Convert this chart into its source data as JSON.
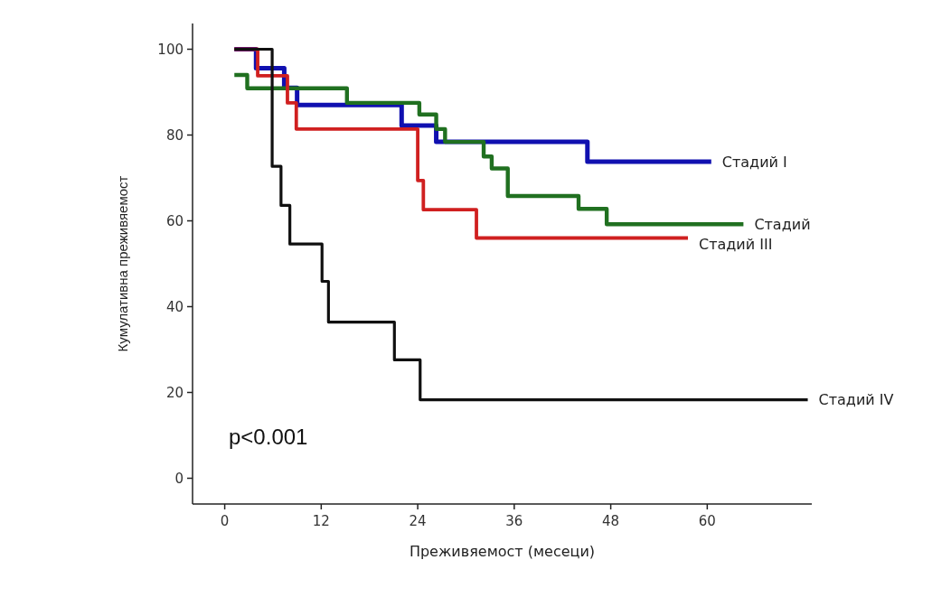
{
  "chart_data": {
    "type": "step",
    "xlabel": "Преживяемост (месеци)",
    "ylabel": "Кумулативна преживяемост",
    "xlim": [
      -4,
      73
    ],
    "ylim": [
      -6,
      106
    ],
    "xticks": [
      0,
      12,
      24,
      36,
      48,
      60
    ],
    "yticks": [
      0,
      20,
      40,
      60,
      80,
      100
    ],
    "grid": false,
    "marker": "none",
    "line_style": "solid",
    "annotations": [
      "p<0.001"
    ],
    "series": [
      {
        "name": "Стадий I",
        "color": "#1010b0",
        "x": [
          1.2,
          3.9,
          7.4,
          9,
          22,
          26.3,
          45.1,
          60.5
        ],
        "values": [
          100,
          95.6,
          91,
          87,
          82.2,
          78.4,
          73.8,
          73.8
        ]
      },
      {
        "name": "Стадий",
        "color": "#207020",
        "x": [
          1.2,
          2.8,
          15.2,
          24.2,
          26.3,
          27.4,
          32.2,
          33.2,
          35.2,
          44,
          47.5,
          64.5
        ],
        "values": [
          94,
          90.9,
          87.5,
          84.8,
          81.4,
          78.4,
          75,
          72.2,
          65.8,
          62.8,
          59.2,
          59.2
        ]
      },
      {
        "name": "Стадий III",
        "color": "#d02020",
        "x": [
          1.2,
          4.1,
          7.8,
          8.9,
          24,
          24.7,
          31.3,
          57.6
        ],
        "values": [
          100,
          93.8,
          87.5,
          81.4,
          69.4,
          62.6,
          56,
          56
        ]
      },
      {
        "name": "Стадий IV",
        "color": "#101010",
        "x": [
          1.2,
          5.9,
          7,
          8.1,
          12.1,
          12.9,
          21.1,
          24.3,
          72.5
        ],
        "values": [
          100,
          72.7,
          63.6,
          54.6,
          45.9,
          36.4,
          27.6,
          18.3,
          18.3
        ]
      }
    ]
  }
}
